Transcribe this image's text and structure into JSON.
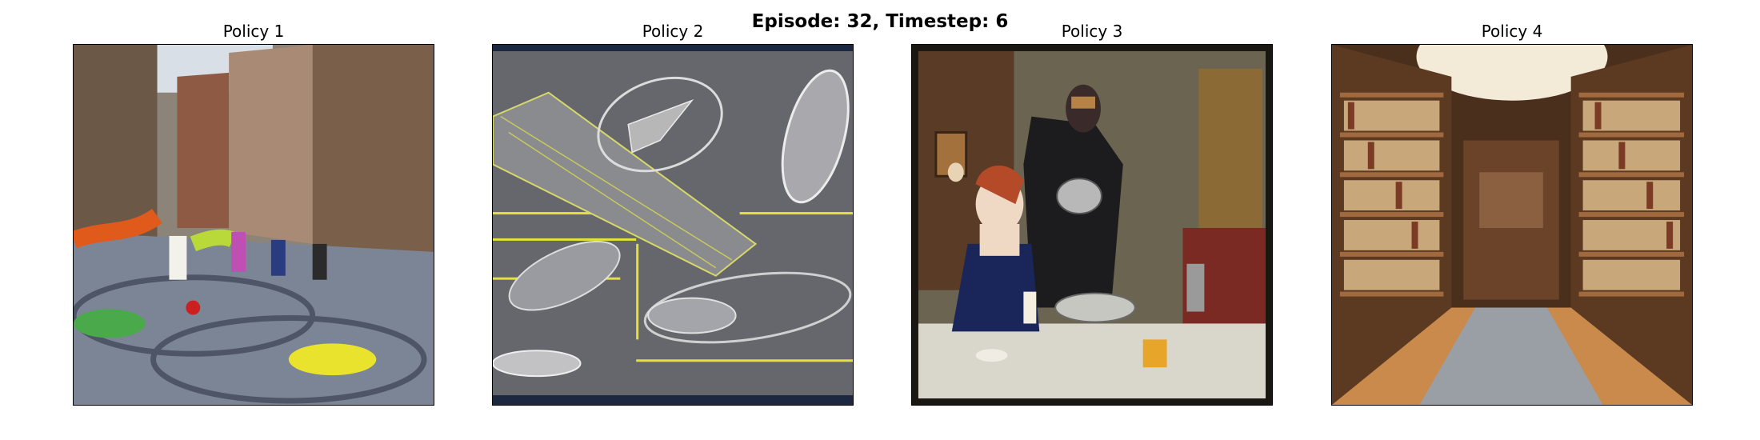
{
  "figure": {
    "suptitle": "Episode: 32, Timestep: 6"
  },
  "panels": [
    {
      "title": "Policy 1"
    },
    {
      "title": "Policy 2"
    },
    {
      "title": "Policy 3"
    },
    {
      "title": "Policy 4"
    }
  ]
}
